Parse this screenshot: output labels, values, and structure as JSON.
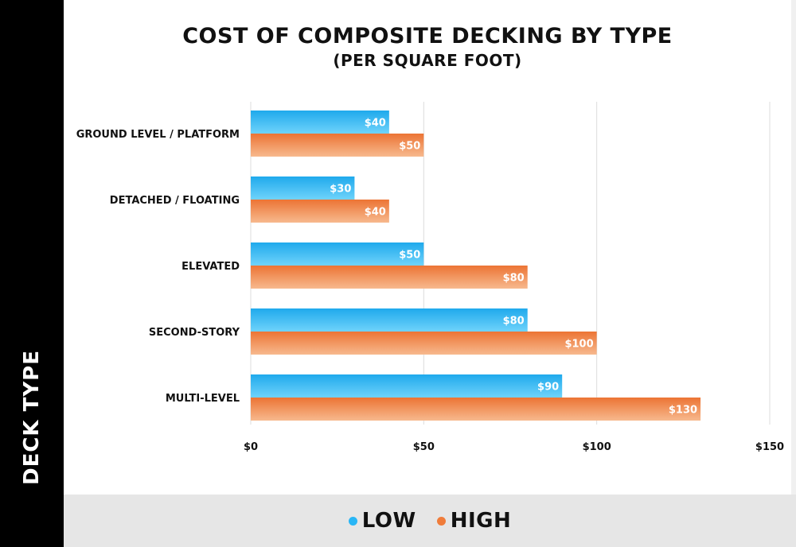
{
  "side_label": "DECK TYPE",
  "chart_data": {
    "type": "bar",
    "orientation": "horizontal",
    "title": "COST OF COMPOSITE DECKING BY TYPE",
    "subtitle": "(PER SQUARE FOOT)",
    "xlabel": "",
    "ylabel": "DECK TYPE",
    "xlim": [
      0,
      150
    ],
    "xticks": [
      0,
      50,
      100,
      150
    ],
    "xtick_labels": [
      "$0",
      "$50",
      "$100",
      "$150"
    ],
    "grid": true,
    "categories": [
      "GROUND LEVEL / PLATFORM",
      "DETACHED / FLOATING",
      "ELEVATED",
      "SECOND-STORY",
      "MULTI-LEVEL"
    ],
    "series": [
      {
        "name": "LOW",
        "color": "#29b6f6",
        "values": [
          40,
          30,
          50,
          80,
          90
        ],
        "labels": [
          "$40",
          "$30",
          "$50",
          "$80",
          "$90"
        ]
      },
      {
        "name": "HIGH",
        "color": "#f07c3a",
        "values": [
          50,
          40,
          80,
          100,
          130
        ],
        "labels": [
          "$50",
          "$40",
          "$80",
          "$100",
          "$130"
        ]
      }
    ],
    "legend_position": "bottom"
  }
}
